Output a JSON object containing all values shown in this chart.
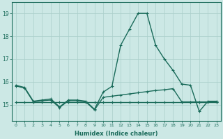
{
  "xlabel": "Humidex (Indice chaleur)",
  "bg_color": "#cce8e5",
  "grid_color": "#aacfcb",
  "line_color": "#1a6b5a",
  "xticks": [
    0,
    1,
    2,
    3,
    4,
    5,
    6,
    7,
    8,
    9,
    10,
    11,
    12,
    13,
    14,
    15,
    16,
    17,
    18,
    19,
    20,
    21,
    22,
    23
  ],
  "yticks": [
    15,
    16,
    17,
    18,
    19
  ],
  "ylim": [
    14.3,
    19.5
  ],
  "xlim": [
    -0.5,
    23.5
  ],
  "series": [
    {
      "x": [
        0,
        1,
        2,
        3,
        4,
        5,
        6,
        7,
        8,
        9,
        10,
        11,
        12,
        13,
        14,
        15,
        16,
        17,
        18,
        19,
        20,
        21,
        22,
        23
      ],
      "y": [
        15.85,
        15.75,
        15.15,
        15.2,
        15.25,
        14.9,
        15.2,
        15.2,
        15.15,
        14.8,
        15.55,
        15.8,
        17.6,
        18.3,
        19.0,
        19.0,
        17.6,
        17.0,
        16.5,
        15.9,
        15.85,
        14.7,
        15.15,
        15.15
      ]
    },
    {
      "x": [
        0,
        1,
        2,
        3,
        4,
        5,
        6,
        7,
        8,
        9,
        10,
        11,
        12,
        13,
        14,
        15,
        16,
        17,
        18,
        19,
        20,
        21,
        22,
        23
      ],
      "y": [
        15.82,
        15.72,
        15.12,
        15.17,
        15.2,
        14.87,
        15.17,
        15.17,
        15.12,
        14.77,
        15.32,
        15.37,
        15.42,
        15.47,
        15.52,
        15.57,
        15.62,
        15.65,
        15.7,
        15.12,
        15.12,
        15.12,
        15.12,
        15.12
      ]
    },
    {
      "x": [
        0,
        1,
        2,
        3,
        4,
        5,
        6,
        7,
        8,
        9,
        10,
        11,
        12,
        13,
        14,
        15,
        16,
        17,
        18,
        19,
        20,
        21,
        22,
        23
      ],
      "y": [
        15.1,
        15.1,
        15.1,
        15.1,
        15.1,
        15.1,
        15.1,
        15.1,
        15.1,
        15.1,
        15.1,
        15.1,
        15.1,
        15.1,
        15.1,
        15.1,
        15.1,
        15.1,
        15.1,
        15.1,
        15.1,
        15.1,
        15.1,
        15.1
      ]
    }
  ]
}
